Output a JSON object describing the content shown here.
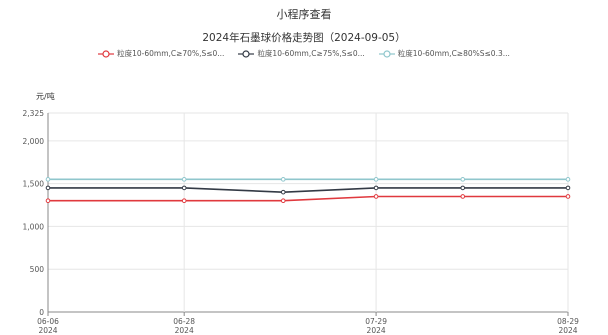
{
  "header": {
    "title": "小程序查看"
  },
  "chart_data": {
    "type": "line",
    "title": "2024年石墨球价格走势图（2024-09-05）",
    "ylabel": "元/吨",
    "xlabel": "",
    "ylim": [
      0,
      2325
    ],
    "yticks": [
      0,
      500,
      1000,
      1500,
      2000,
      2325
    ],
    "ytick_labels": [
      "0",
      "500",
      "1,000",
      "1,500",
      "2,000",
      "2,325"
    ],
    "x": [
      "2024-06-06",
      "2024-06-28",
      "2024-07-14",
      "2024-07-29",
      "2024-08-12",
      "2024-08-29"
    ],
    "xticks": [
      {
        "date": "2024-06-06",
        "line1": "06-06",
        "line2": "2024"
      },
      {
        "date": "2024-06-28",
        "line1": "06-28",
        "line2": "2024"
      },
      {
        "date": "2024-07-29",
        "line1": "07-29",
        "line2": "2024"
      },
      {
        "date": "2024-08-29",
        "line1": "08-29",
        "line2": "2024"
      }
    ],
    "grid": true,
    "legend_position": "top",
    "series": [
      {
        "name": "粒度10-60mm,C≥70%,S≤0...",
        "color": "#e0393e",
        "values": [
          1300,
          1300,
          1300,
          1350,
          1350,
          1350
        ]
      },
      {
        "name": "粒度10-60mm,C≥75%,S≤0...",
        "color": "#333a45",
        "values": [
          1450,
          1450,
          1400,
          1450,
          1450,
          1450
        ]
      },
      {
        "name": "粒度10-60mm,C≥80%S≤0.3...",
        "color": "#8fc6cc",
        "values": [
          1550,
          1550,
          1550,
          1550,
          1550,
          1550
        ]
      }
    ]
  }
}
